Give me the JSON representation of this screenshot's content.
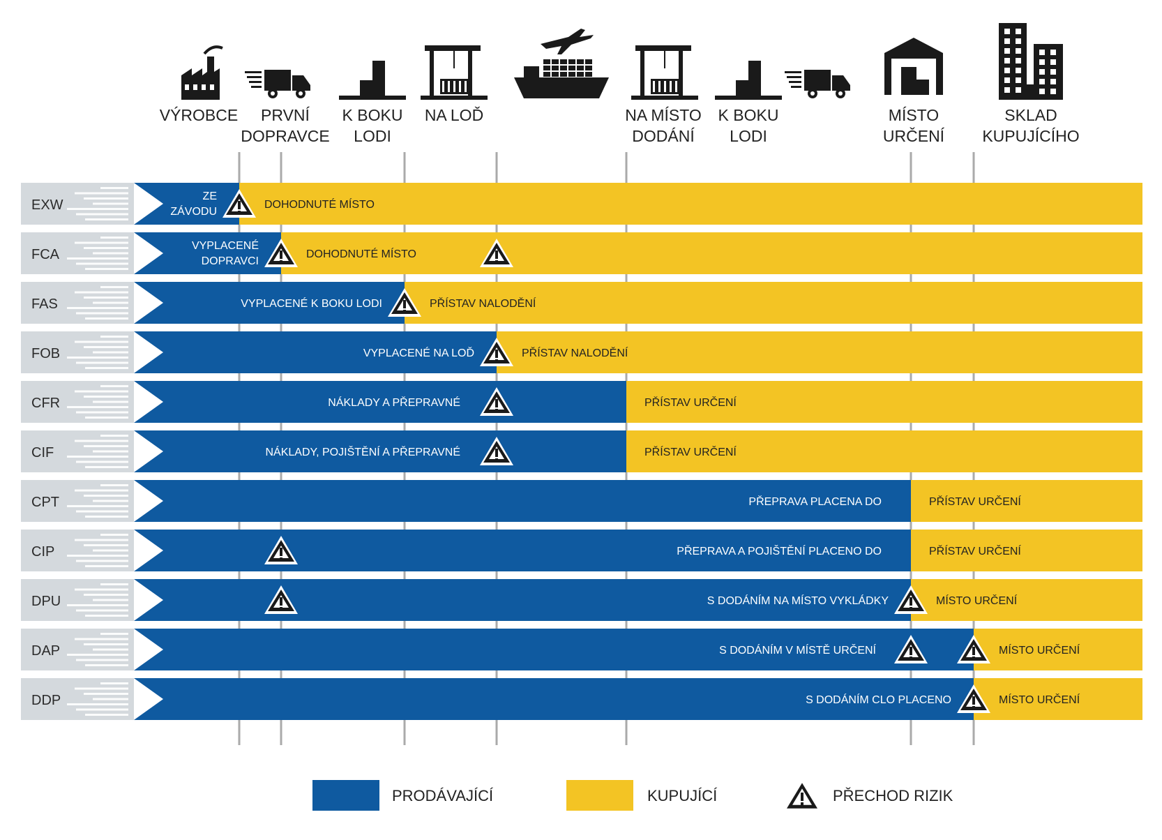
{
  "colors": {
    "seller": "#0f5aa0",
    "buyer": "#f3c424",
    "line": "#aaaaaa",
    "code_bg": "#d4d9dd",
    "icon": "#1a1a1a"
  },
  "stages": [
    {
      "id": "vyrobce",
      "icon": "factory-icon",
      "lines": [
        "VÝROBCE"
      ]
    },
    {
      "id": "prvni-dopravce",
      "icon": "truck-icon",
      "lines": [
        "PRVNÍ",
        "DOPRAVCE"
      ]
    },
    {
      "id": "k-boku-lodi-1",
      "icon": "pier-icon",
      "lines": [
        "K BOKU",
        "LODI"
      ]
    },
    {
      "id": "na-lod",
      "icon": "crane-icon",
      "lines": [
        "NA LOĎ"
      ]
    },
    {
      "id": "ship",
      "icon": "ship-plane-icon",
      "lines": []
    },
    {
      "id": "na-misto-dodani",
      "icon": "crane-icon",
      "lines": [
        "NA MÍSTO",
        "DODÁNÍ"
      ]
    },
    {
      "id": "k-boku-lodi-2",
      "icon": "pier-icon",
      "lines": [
        "K BOKU",
        "LODI"
      ]
    },
    {
      "id": "truck-2",
      "icon": "truck-icon",
      "lines": []
    },
    {
      "id": "misto-urceni",
      "icon": "warehouse-icon",
      "lines": [
        "MÍSTO",
        "URČENÍ"
      ]
    },
    {
      "id": "sklad-kupujiciho",
      "icon": "buildings-icon",
      "lines": [
        "SKLAD",
        "KUPUJÍCÍHO"
      ]
    }
  ],
  "rows": [
    {
      "code": "EXW",
      "seller_until": 0,
      "seller_label": [
        "ZE",
        "ZÁVODU"
      ],
      "buyer_label": "DOHODNUTÉ MÍSTO",
      "risk_at": [
        0
      ]
    },
    {
      "code": "FCA",
      "seller_until": 1,
      "seller_label": [
        "VYPLACENÉ",
        "DOPRAVCI"
      ],
      "buyer_label": "DOHODNUTÉ MÍSTO",
      "risk_at": [
        1,
        3
      ]
    },
    {
      "code": "FAS",
      "seller_until": 2,
      "seller_label": [
        "VYPLACENÉ K BOKU LODI"
      ],
      "buyer_label": "PŘÍSTAV NALODĚNÍ",
      "risk_at": [
        2
      ]
    },
    {
      "code": "FOB",
      "seller_until": 3,
      "seller_label": [
        "VYPLACENÉ NA LOĎ"
      ],
      "buyer_label": "PŘÍSTAV NALODĚNÍ",
      "risk_at": [
        3
      ]
    },
    {
      "code": "CFR",
      "seller_until": 4,
      "seller_label": [
        "NÁKLADY A PŘEPRAVNÉ"
      ],
      "buyer_label": "PŘÍSTAV URČENÍ",
      "risk_at": [
        3
      ]
    },
    {
      "code": "CIF",
      "seller_until": 4,
      "seller_label": [
        "NÁKLADY, POJIŠTĚNÍ A PŘEPRAVNÉ"
      ],
      "buyer_label": "PŘÍSTAV URČENÍ",
      "risk_at": [
        3
      ]
    },
    {
      "code": "CPT",
      "seller_until": 5,
      "seller_label": [
        "PŘEPRAVA PLACENA DO"
      ],
      "buyer_label": "PŘÍSTAV URČENÍ",
      "risk_at": []
    },
    {
      "code": "CIP",
      "seller_until": 5,
      "seller_label": [
        "PŘEPRAVA A POJIŠTĚNÍ PLACENO DO"
      ],
      "buyer_label": "PŘÍSTAV URČENÍ",
      "risk_at": [
        1
      ]
    },
    {
      "code": "DPU",
      "seller_until": 5,
      "seller_label": [
        "S DODÁNÍM NA MÍSTO VYKLÁDKY"
      ],
      "buyer_label": "MÍSTO URČENÍ",
      "risk_at": [
        1,
        5
      ]
    },
    {
      "code": "DAP",
      "seller_until": 6,
      "seller_label": [
        "S DODÁNÍM V MÍSTĚ URČENÍ"
      ],
      "buyer_label": "MÍSTO URČENÍ",
      "risk_at": [
        5,
        6
      ]
    },
    {
      "code": "DDP",
      "seller_until": 6,
      "seller_label": [
        "S DODÁNÍM CLO PLACENO"
      ],
      "buyer_label": "MÍSTO URČENÍ",
      "risk_at": [
        6
      ]
    }
  ],
  "legend": {
    "seller": "PRODÁVAJÍCÍ",
    "buyer": "KUPUJÍCÍ",
    "risk": "PŘECHOD RIZIK"
  }
}
